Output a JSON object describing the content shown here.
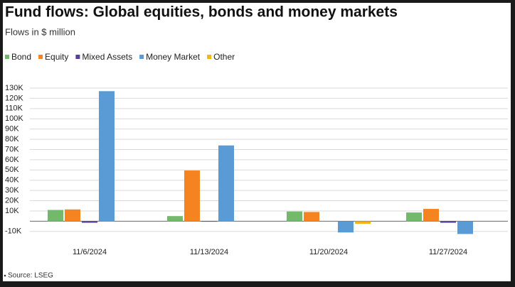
{
  "chart_data": {
    "type": "bar",
    "title": "Fund flows: Global equities, bonds and money markets",
    "subtitle": "Flows in $ million",
    "source": "Source: LSEG",
    "categories": [
      "11/6/2024",
      "11/13/2024",
      "11/20/2024",
      "11/27/2024"
    ],
    "series": [
      {
        "name": "Bond",
        "color": "#72b96b",
        "values": [
          11000,
          5000,
          9500,
          8500
        ]
      },
      {
        "name": "Equity",
        "color": "#f5831f",
        "values": [
          11500,
          49500,
          9000,
          12000
        ]
      },
      {
        "name": "Mixed Assets",
        "color": "#5a3f99",
        "values": [
          -1500,
          -500,
          0,
          -1500
        ]
      },
      {
        "name": "Money Market",
        "color": "#5b9bd5",
        "values": [
          127000,
          74000,
          -11000,
          -12500
        ]
      },
      {
        "name": "Other",
        "color": "#f2b417",
        "values": [
          0,
          0,
          -2500,
          0
        ]
      }
    ],
    "ylim": [
      -15000,
      130000
    ],
    "yticks": [
      {
        "value": -10000,
        "label": "-10K"
      },
      {
        "value": 10000,
        "label": "10K"
      },
      {
        "value": 20000,
        "label": "20K"
      },
      {
        "value": 30000,
        "label": "30K"
      },
      {
        "value": 40000,
        "label": "40K"
      },
      {
        "value": 50000,
        "label": "50K"
      },
      {
        "value": 60000,
        "label": "60K"
      },
      {
        "value": 70000,
        "label": "70K"
      },
      {
        "value": 80000,
        "label": "80K"
      },
      {
        "value": 90000,
        "label": "90K"
      },
      {
        "value": 100000,
        "label": "100K"
      },
      {
        "value": 110000,
        "label": "110K"
      },
      {
        "value": 120000,
        "label": "120K"
      },
      {
        "value": 130000,
        "label": "130K"
      }
    ],
    "grid": true,
    "legend": "top"
  }
}
